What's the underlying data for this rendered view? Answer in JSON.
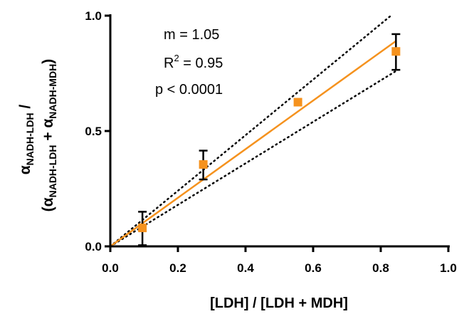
{
  "chart_data": {
    "type": "scatter",
    "xlabel": "[LDH] / [LDH + MDH]",
    "ylabel": {
      "num_symbol": "α",
      "num_sub": "NADH-LDH",
      "slash": " /",
      "den_open": "(α",
      "den_sub1": "NADH-LDH",
      "den_plus": " + α",
      "den_sub2": "NADH-MDH",
      "den_close": ")"
    },
    "xlim": [
      0.0,
      1.0
    ],
    "ylim": [
      0.0,
      1.0
    ],
    "x_ticks": [
      "0.0",
      "0.2",
      "0.4",
      "0.6",
      "0.8",
      "1.0"
    ],
    "y_ticks": [
      "0.0",
      "0.5",
      "1.0"
    ],
    "x_tick_values": [
      0.0,
      0.2,
      0.4,
      0.6,
      0.8,
      1.0
    ],
    "y_tick_values": [
      0.0,
      0.5,
      1.0
    ],
    "points": [
      {
        "x": 0.095,
        "y": 0.08,
        "err_low": 0.075,
        "err_high": 0.07
      },
      {
        "x": 0.275,
        "y": 0.355,
        "err_low": 0.065,
        "err_high": 0.06
      },
      {
        "x": 0.555,
        "y": 0.625,
        "err_low": 0.0,
        "err_high": 0.0
      },
      {
        "x": 0.845,
        "y": 0.845,
        "err_low": 0.08,
        "err_high": 0.075
      }
    ],
    "fit_line": {
      "x": [
        0.0,
        0.845
      ],
      "y": [
        0.0,
        0.89
      ]
    },
    "ci_upper": {
      "x": [
        0.0,
        0.83
      ],
      "y": [
        0.0,
        1.0
      ]
    },
    "ci_lower": {
      "x": [
        0.0,
        0.845
      ],
      "y": [
        0.0,
        0.76
      ]
    },
    "stats": {
      "slope_text": "m = 1.05",
      "r2_prefix": "R",
      "r2_sup": "2",
      "r2_suffix": " = 0.95",
      "p_text": "p < 0.0001"
    },
    "colors": {
      "points": "#f5921e",
      "fit": "#f5921e",
      "ci": "#000000",
      "error_bars": "#000000",
      "axes": "#000000"
    }
  }
}
